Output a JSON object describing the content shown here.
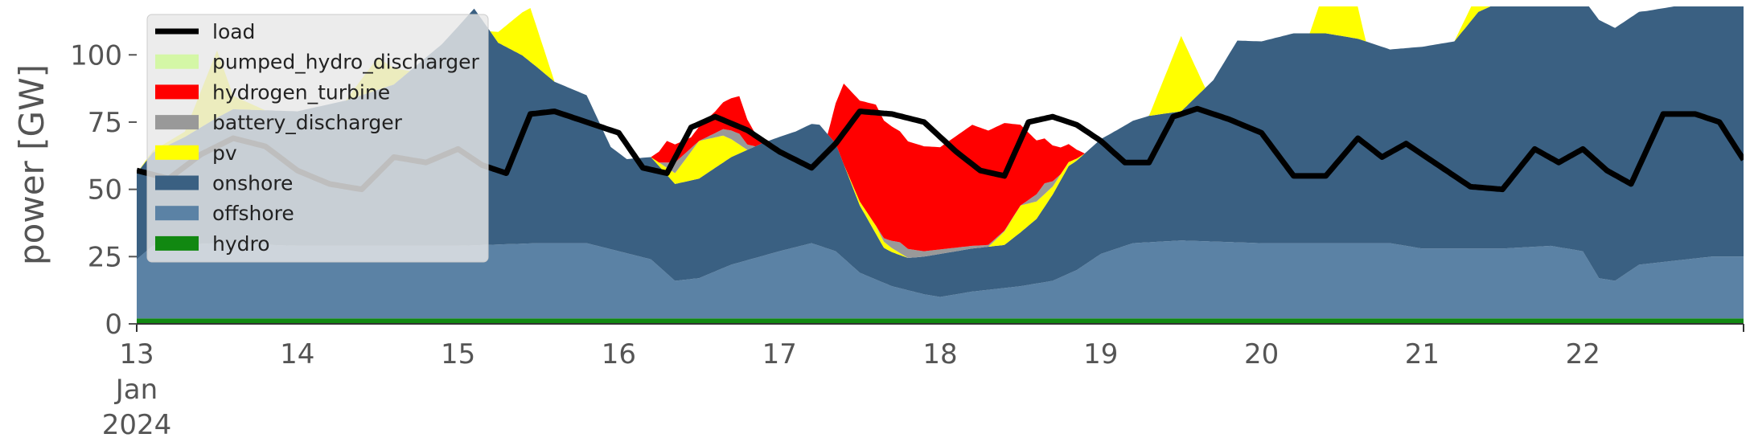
{
  "chart_data": {
    "type": "area",
    "title": "",
    "xlabel": "",
    "ylabel": "power [GW]",
    "x_unit": "day of Jan 2024 (fractional)",
    "xlim": [
      13,
      23
    ],
    "ylim": [
      0,
      118
    ],
    "grid": false,
    "legend_position": "top-left",
    "y_ticks": [
      0,
      25,
      50,
      75,
      100
    ],
    "x_ticks": [
      {
        "value": 13,
        "label": "13",
        "sub1": "Jan",
        "sub2": "2024"
      },
      {
        "value": 14,
        "label": "14"
      },
      {
        "value": 15,
        "label": "15"
      },
      {
        "value": 16,
        "label": "16"
      },
      {
        "value": 17,
        "label": "17"
      },
      {
        "value": 18,
        "label": "18"
      },
      {
        "value": 19,
        "label": "19"
      },
      {
        "value": 20,
        "label": "20"
      },
      {
        "value": 21,
        "label": "21"
      },
      {
        "value": 22,
        "label": "22"
      }
    ],
    "legend": [
      {
        "name": "load",
        "color": "#000000",
        "kind": "line"
      },
      {
        "name": "pumped_hydro_discharger",
        "color": "#d4f7a6",
        "kind": "patch"
      },
      {
        "name": "hydrogen_turbine",
        "color": "#ff0000",
        "kind": "patch"
      },
      {
        "name": "battery_discharger",
        "color": "#999999",
        "kind": "patch"
      },
      {
        "name": "pv",
        "color": "#ffff00",
        "kind": "patch"
      },
      {
        "name": "onshore",
        "color": "#3a6082",
        "kind": "patch"
      },
      {
        "name": "offshore",
        "color": "#5b82a5",
        "kind": "patch"
      },
      {
        "name": "hydro",
        "color": "#118811",
        "kind": "patch"
      }
    ],
    "series": [
      {
        "name": "hydro",
        "color": "#118811",
        "points": [
          [
            13,
            2
          ],
          [
            14,
            2
          ],
          [
            15,
            2
          ],
          [
            16,
            2
          ],
          [
            17,
            2
          ],
          [
            18,
            2
          ],
          [
            19,
            2
          ],
          [
            20,
            2
          ],
          [
            21,
            2
          ],
          [
            22,
            2
          ],
          [
            23,
            2
          ]
        ]
      },
      {
        "name": "offshore",
        "color": "#5b82a5",
        "points": [
          [
            13,
            22
          ],
          [
            13.1,
            27
          ],
          [
            13.5,
            28
          ],
          [
            14,
            27
          ],
          [
            14.5,
            27
          ],
          [
            15,
            27
          ],
          [
            15.5,
            28
          ],
          [
            15.8,
            28
          ],
          [
            16,
            25
          ],
          [
            16.2,
            22
          ],
          [
            16.35,
            14
          ],
          [
            16.5,
            15
          ],
          [
            16.7,
            20
          ],
          [
            17,
            25
          ],
          [
            17.2,
            28
          ],
          [
            17.35,
            25
          ],
          [
            17.5,
            17
          ],
          [
            17.7,
            12
          ],
          [
            17.9,
            9
          ],
          [
            18,
            8
          ],
          [
            18.2,
            10
          ],
          [
            18.5,
            12
          ],
          [
            18.7,
            14
          ],
          [
            18.85,
            18
          ],
          [
            19,
            24
          ],
          [
            19.2,
            28
          ],
          [
            19.5,
            29
          ],
          [
            20,
            28
          ],
          [
            20.5,
            28
          ],
          [
            20.8,
            28
          ],
          [
            21,
            26
          ],
          [
            21.5,
            26
          ],
          [
            21.8,
            27
          ],
          [
            22,
            25
          ],
          [
            22.1,
            15
          ],
          [
            22.2,
            14
          ],
          [
            22.35,
            20
          ],
          [
            22.5,
            21
          ],
          [
            22.8,
            23
          ],
          [
            23,
            23
          ]
        ]
      },
      {
        "name": "onshore",
        "color": "#3a6082",
        "points": [
          [
            13,
            32
          ],
          [
            13.3,
            40
          ],
          [
            13.6,
            50
          ],
          [
            14,
            50
          ],
          [
            14.3,
            54
          ],
          [
            14.6,
            60
          ],
          [
            14.9,
            75
          ],
          [
            15.1,
            88
          ],
          [
            15.25,
            75
          ],
          [
            15.4,
            70
          ],
          [
            15.6,
            60
          ],
          [
            15.8,
            55
          ],
          [
            15.95,
            38
          ],
          [
            16.05,
            35
          ],
          [
            16.2,
            38
          ],
          [
            16.35,
            36
          ],
          [
            16.5,
            37
          ],
          [
            16.7,
            40
          ],
          [
            16.9,
            42
          ],
          [
            17.1,
            43
          ],
          [
            17.25,
            45
          ],
          [
            17.35,
            40
          ],
          [
            17.5,
            25
          ],
          [
            17.65,
            13
          ],
          [
            17.8,
            12
          ],
          [
            18,
            16
          ],
          [
            18.2,
            16
          ],
          [
            18.4,
            16
          ],
          [
            18.6,
            24
          ],
          [
            18.8,
            40
          ],
          [
            18.95,
            42
          ],
          [
            19.1,
            44
          ],
          [
            19.3,
            47
          ],
          [
            19.5,
            48
          ],
          [
            19.7,
            60
          ],
          [
            19.85,
            75
          ],
          [
            20,
            75
          ],
          [
            20.2,
            78
          ],
          [
            20.4,
            78
          ],
          [
            20.6,
            76
          ],
          [
            20.8,
            72
          ],
          [
            21,
            75
          ],
          [
            21.2,
            77
          ],
          [
            21.35,
            88
          ],
          [
            21.5,
            92
          ],
          [
            21.7,
            92
          ],
          [
            21.85,
            96
          ],
          [
            22,
            94
          ],
          [
            22.1,
            96
          ],
          [
            22.2,
            94
          ],
          [
            22.4,
            94
          ],
          [
            22.7,
            95
          ],
          [
            23,
            96
          ]
        ]
      },
      {
        "name": "pv",
        "color": "#ffff00",
        "points": [
          [
            13,
            0
          ],
          [
            13.3,
            2
          ],
          [
            13.5,
            25
          ],
          [
            13.6,
            5
          ],
          [
            13.8,
            0
          ],
          [
            14.3,
            0
          ],
          [
            14.5,
            12
          ],
          [
            14.7,
            0
          ],
          [
            15.2,
            0
          ],
          [
            15.45,
            20
          ],
          [
            15.6,
            0
          ],
          [
            16.2,
            0
          ],
          [
            16.35,
            4
          ],
          [
            16.5,
            14
          ],
          [
            16.65,
            10
          ],
          [
            16.8,
            0
          ],
          [
            17.4,
            0
          ],
          [
            17.6,
            3
          ],
          [
            17.8,
            0
          ],
          [
            18.3,
            0
          ],
          [
            18.5,
            10
          ],
          [
            18.7,
            3
          ],
          [
            18.9,
            0
          ],
          [
            19.3,
            0
          ],
          [
            19.5,
            28
          ],
          [
            19.65,
            0
          ],
          [
            20.3,
            0
          ],
          [
            20.5,
            35
          ],
          [
            20.65,
            0
          ],
          [
            21.2,
            0
          ],
          [
            21.4,
            10
          ],
          [
            21.6,
            2
          ],
          [
            21.8,
            0
          ],
          [
            23,
            0
          ]
        ]
      },
      {
        "name": "battery_discharger",
        "color": "#999999",
        "points": [
          [
            13,
            0
          ],
          [
            16.25,
            0
          ],
          [
            16.35,
            4
          ],
          [
            16.5,
            0
          ],
          [
            16.75,
            4
          ],
          [
            16.85,
            0
          ],
          [
            17.6,
            0
          ],
          [
            17.75,
            4
          ],
          [
            17.9,
            2
          ],
          [
            18.5,
            0
          ],
          [
            18.65,
            4
          ],
          [
            18.75,
            0
          ],
          [
            21.6,
            0
          ],
          [
            21.7,
            4
          ],
          [
            21.9,
            0
          ],
          [
            23,
            0
          ]
        ]
      },
      {
        "name": "hydrogen_turbine",
        "color": "#ff0000",
        "points": [
          [
            13,
            0
          ],
          [
            16.2,
            0
          ],
          [
            16.3,
            8
          ],
          [
            16.45,
            4
          ],
          [
            16.6,
            8
          ],
          [
            16.75,
            14
          ],
          [
            16.9,
            0
          ],
          [
            17.3,
            0
          ],
          [
            17.4,
            30
          ],
          [
            17.6,
            45
          ],
          [
            17.8,
            40
          ],
          [
            18,
            38
          ],
          [
            18.2,
            45
          ],
          [
            18.4,
            40
          ],
          [
            18.6,
            20
          ],
          [
            18.75,
            10
          ],
          [
            18.9,
            0
          ],
          [
            23,
            0
          ]
        ]
      },
      {
        "name": "pumped_hydro_discharger",
        "color": "#d4f7a6",
        "points": [
          [
            13,
            0
          ],
          [
            23,
            0
          ]
        ]
      }
    ],
    "load": {
      "name": "load",
      "color": "#000000",
      "points": [
        [
          13,
          57
        ],
        [
          13.2,
          54
        ],
        [
          13.4,
          63
        ],
        [
          13.6,
          69
        ],
        [
          13.8,
          66
        ],
        [
          14,
          57
        ],
        [
          14.2,
          52
        ],
        [
          14.4,
          50
        ],
        [
          14.6,
          62
        ],
        [
          14.8,
          60
        ],
        [
          15,
          65
        ],
        [
          15.15,
          59
        ],
        [
          15.3,
          56
        ],
        [
          15.45,
          78
        ],
        [
          15.6,
          79
        ],
        [
          15.8,
          75
        ],
        [
          16,
          71
        ],
        [
          16.15,
          58
        ],
        [
          16.3,
          56
        ],
        [
          16.45,
          73
        ],
        [
          16.6,
          77
        ],
        [
          16.8,
          72
        ],
        [
          17,
          64
        ],
        [
          17.2,
          58
        ],
        [
          17.35,
          67
        ],
        [
          17.5,
          79
        ],
        [
          17.7,
          78
        ],
        [
          17.9,
          75
        ],
        [
          18.1,
          64
        ],
        [
          18.25,
          57
        ],
        [
          18.4,
          55
        ],
        [
          18.55,
          75
        ],
        [
          18.7,
          77
        ],
        [
          18.85,
          74
        ],
        [
          19,
          68
        ],
        [
          19.15,
          60
        ],
        [
          19.3,
          60
        ],
        [
          19.45,
          77
        ],
        [
          19.6,
          80
        ],
        [
          19.8,
          76
        ],
        [
          20,
          71
        ],
        [
          20.2,
          55
        ],
        [
          20.4,
          55
        ],
        [
          20.6,
          69
        ],
        [
          20.75,
          62
        ],
        [
          20.9,
          67
        ],
        [
          21.1,
          59
        ],
        [
          21.3,
          51
        ],
        [
          21.5,
          50
        ],
        [
          21.7,
          65
        ],
        [
          21.85,
          60
        ],
        [
          22,
          65
        ],
        [
          22.15,
          57
        ],
        [
          22.3,
          52
        ],
        [
          22.5,
          78
        ],
        [
          22.7,
          78
        ],
        [
          22.85,
          75
        ],
        [
          23,
          61
        ]
      ]
    }
  }
}
